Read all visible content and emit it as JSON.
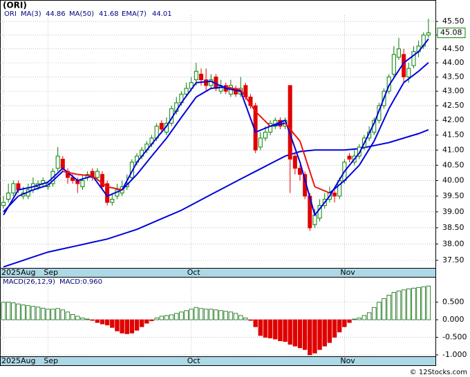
{
  "copyright": "© 12Stocks.com",
  "chart_data": [
    {
      "type": "candlestick",
      "title": "(ORI)",
      "symbol": "ORI",
      "candles": [
        [
          39.2,
          39.5,
          39.1,
          39.3
        ],
        [
          39.4,
          39.9,
          39.3,
          39.6
        ],
        [
          39.6,
          40.0,
          39.5,
          39.9
        ],
        [
          39.9,
          40.0,
          39.6,
          39.7
        ],
        [
          39.5,
          39.8,
          39.4,
          39.6
        ],
        [
          39.5,
          39.9,
          39.4,
          39.7
        ],
        [
          39.7,
          40.1,
          39.6,
          39.9
        ],
        [
          39.8,
          40.0,
          39.7,
          39.9
        ],
        [
          39.9,
          40.1,
          39.8,
          40.0
        ],
        [
          39.8,
          40.0,
          39.7,
          39.9
        ],
        [
          39.9,
          40.4,
          39.8,
          40.3
        ],
        [
          40.4,
          41.1,
          40.3,
          40.8
        ],
        [
          40.7,
          40.8,
          40.3,
          40.4
        ],
        [
          40.3,
          40.4,
          39.9,
          40.1
        ],
        [
          40.1,
          40.2,
          39.9,
          40.0
        ],
        [
          40.0,
          40.1,
          39.6,
          39.9
        ],
        [
          39.8,
          40.2,
          39.7,
          40.0
        ],
        [
          40.1,
          40.3,
          40.0,
          40.2
        ],
        [
          40.3,
          40.4,
          40.0,
          40.1
        ],
        [
          40.1,
          40.4,
          40.0,
          40.3
        ],
        [
          40.2,
          40.3,
          39.7,
          39.8
        ],
        [
          39.9,
          40.0,
          39.2,
          39.3
        ],
        [
          39.3,
          39.6,
          39.2,
          39.4
        ],
        [
          39.5,
          39.9,
          39.4,
          39.7
        ],
        [
          39.6,
          40.0,
          39.5,
          39.8
        ],
        [
          39.8,
          40.2,
          39.7,
          39.9
        ],
        [
          40.1,
          40.7,
          40.0,
          40.6
        ],
        [
          40.6,
          40.9,
          40.5,
          40.8
        ],
        [
          40.8,
          41.1,
          40.7,
          41.0
        ],
        [
          41.0,
          41.3,
          40.9,
          41.2
        ],
        [
          41.2,
          41.5,
          41.1,
          41.4
        ],
        [
          41.4,
          41.9,
          41.3,
          41.8
        ],
        [
          41.9,
          42.0,
          41.6,
          41.7
        ],
        [
          41.6,
          42.1,
          41.5,
          41.9
        ],
        [
          41.9,
          42.5,
          41.8,
          42.4
        ],
        [
          42.3,
          42.8,
          42.2,
          42.6
        ],
        [
          42.6,
          43.0,
          42.5,
          42.9
        ],
        [
          42.9,
          43.3,
          42.8,
          43.1
        ],
        [
          43.1,
          43.5,
          43.0,
          43.3
        ],
        [
          43.4,
          44.0,
          43.2,
          43.7
        ],
        [
          43.6,
          43.8,
          43.2,
          43.4
        ],
        [
          43.4,
          43.8,
          43.0,
          43.2
        ],
        [
          43.2,
          43.6,
          43.1,
          43.4
        ],
        [
          43.5,
          43.6,
          43.0,
          43.1
        ],
        [
          43.0,
          43.4,
          42.9,
          43.2
        ],
        [
          43.2,
          43.3,
          42.9,
          43.0
        ],
        [
          42.9,
          43.4,
          42.8,
          43.2
        ],
        [
          43.1,
          43.2,
          42.8,
          42.9
        ],
        [
          42.9,
          43.5,
          42.8,
          43.1
        ],
        [
          43.2,
          43.3,
          42.7,
          42.8
        ],
        [
          42.8,
          42.9,
          42.4,
          42.5
        ],
        [
          42.5,
          42.6,
          40.9,
          41.0
        ],
        [
          41.1,
          41.6,
          41.0,
          41.4
        ],
        [
          41.4,
          41.8,
          41.3,
          41.6
        ],
        [
          41.6,
          42.0,
          41.5,
          41.9
        ],
        [
          41.8,
          42.1,
          41.7,
          42.0
        ],
        [
          42.0,
          42.1,
          41.7,
          41.8
        ],
        [
          41.8,
          42.1,
          41.7,
          42.0
        ],
        [
          43.2,
          43.2,
          39.6,
          40.7
        ],
        [
          40.8,
          40.9,
          40.2,
          40.4
        ],
        [
          40.4,
          40.5,
          40.0,
          40.2
        ],
        [
          40.2,
          40.3,
          39.4,
          39.5
        ],
        [
          39.5,
          39.6,
          38.4,
          38.5
        ],
        [
          38.6,
          39.1,
          38.5,
          38.9
        ],
        [
          38.8,
          39.4,
          38.7,
          39.2
        ],
        [
          39.2,
          39.6,
          39.1,
          39.4
        ],
        [
          39.4,
          39.8,
          39.3,
          39.6
        ],
        [
          39.6,
          39.7,
          39.3,
          39.5
        ],
        [
          39.5,
          40.1,
          39.4,
          40.0
        ],
        [
          40.0,
          40.7,
          39.9,
          40.6
        ],
        [
          40.8,
          40.9,
          40.6,
          40.7
        ],
        [
          40.6,
          41.0,
          40.5,
          40.8
        ],
        [
          40.8,
          41.2,
          40.7,
          41.1
        ],
        [
          41.1,
          41.5,
          41.0,
          41.4
        ],
        [
          41.4,
          41.8,
          41.3,
          41.6
        ],
        [
          41.6,
          42.1,
          41.5,
          42.0
        ],
        [
          42.0,
          42.6,
          41.9,
          42.5
        ],
        [
          42.5,
          43.1,
          42.4,
          43.0
        ],
        [
          43.0,
          43.6,
          42.9,
          43.5
        ],
        [
          43.6,
          44.6,
          43.5,
          44.3
        ],
        [
          44.2,
          44.9,
          44.1,
          44.5
        ],
        [
          44.3,
          44.5,
          43.3,
          43.5
        ],
        [
          43.5,
          44.0,
          43.3,
          43.8
        ],
        [
          43.9,
          44.6,
          43.8,
          44.4
        ],
        [
          44.4,
          44.8,
          44.2,
          44.6
        ],
        [
          44.6,
          45.1,
          44.5,
          45.0
        ],
        [
          45.0,
          45.6,
          44.9,
          45.08
        ]
      ],
      "x": [
        0,
        3,
        6,
        9,
        12,
        15,
        18,
        21,
        24,
        27,
        30,
        33,
        36,
        39,
        42,
        45,
        48,
        51,
        54,
        57,
        60,
        63,
        66,
        69,
        72,
        75,
        78,
        81,
        84,
        86
      ],
      "series": [
        {
          "name": "MA(3)",
          "color": "#0000dd",
          "last": 44.86,
          "values": [
            38.9,
            39.7,
            39.8,
            39.95,
            40.4,
            40.0,
            40.15,
            39.5,
            39.7,
            40.6,
            41.2,
            41.8,
            42.6,
            43.3,
            43.35,
            43.1,
            43.0,
            41.6,
            41.8,
            42.0,
            40.6,
            38.9,
            39.5,
            40.3,
            40.9,
            41.9,
            43.2,
            44.0,
            44.4,
            44.86
          ]
        },
        {
          "name": "MA(50)",
          "color": "#0000dd",
          "last": 41.68,
          "values": [
            37.3,
            37.45,
            37.6,
            37.75,
            37.85,
            37.95,
            38.05,
            38.15,
            38.3,
            38.45,
            38.65,
            38.85,
            39.05,
            39.3,
            39.55,
            39.8,
            40.05,
            40.3,
            40.55,
            40.8,
            40.95,
            41.0,
            41.0,
            41.0,
            41.05,
            41.15,
            41.25,
            41.4,
            41.55,
            41.68
          ]
        },
        {
          "name": "EMA(7)",
          "color": "#0000dd",
          "down_color": "#ee1111",
          "last": 44.01,
          "values": [
            39.0,
            39.5,
            39.7,
            39.85,
            40.3,
            40.2,
            40.15,
            39.8,
            39.7,
            40.2,
            40.8,
            41.4,
            42.1,
            42.8,
            43.1,
            43.15,
            43.05,
            42.3,
            41.8,
            41.9,
            41.3,
            39.8,
            39.6,
            40.0,
            40.5,
            41.3,
            42.4,
            43.3,
            43.7,
            44.01
          ]
        }
      ],
      "last_price": 45.08,
      "log_scale": true,
      "grid": true,
      "ylim": [
        37.27,
        45.73
      ],
      "yticks": [
        {
          "value": 45.5,
          "label": "45.50"
        },
        {
          "value": 45.0,
          "label": "45.00"
        },
        {
          "value": 44.5,
          "label": "44.50"
        },
        {
          "value": 44.0,
          "label": "44.00"
        },
        {
          "value": 43.5,
          "label": "43.50"
        },
        {
          "value": 43.0,
          "label": "43.00"
        },
        {
          "value": 42.5,
          "label": "42.50"
        },
        {
          "value": 42.0,
          "label": "42.00"
        },
        {
          "value": 41.5,
          "label": "41.50"
        },
        {
          "value": 41.0,
          "label": "41.00"
        },
        {
          "value": 40.5,
          "label": "40.50"
        },
        {
          "value": 40.0,
          "label": "40.00"
        },
        {
          "value": 39.5,
          "label": "39.50"
        },
        {
          "value": 39.0,
          "label": "39.00"
        },
        {
          "value": 38.5,
          "label": "38.50"
        },
        {
          "value": 38.0,
          "label": "38.00"
        },
        {
          "value": 37.5,
          "label": "37.50"
        }
      ],
      "xticks": [
        {
          "value": 0,
          "label": "2025Aug"
        },
        {
          "value": 9,
          "label": "Sep"
        },
        {
          "value": 38,
          "label": "Oct"
        },
        {
          "value": 69,
          "label": "Nov"
        }
      ],
      "up_color": "#008000",
      "down_color": "#e00000"
    },
    {
      "type": "bar",
      "name": "MACD(26,12,9)",
      "last": 0.96,
      "last_label": "MACD:0.960",
      "values": [
        0.5,
        0.5,
        0.48,
        0.45,
        0.42,
        0.4,
        0.38,
        0.36,
        0.33,
        0.3,
        0.3,
        0.32,
        0.28,
        0.22,
        0.15,
        0.1,
        0.05,
        0.02,
        -0.02,
        -0.08,
        -0.12,
        -0.15,
        -0.22,
        -0.32,
        -0.38,
        -0.4,
        -0.38,
        -0.3,
        -0.2,
        -0.1,
        -0.03,
        0.05,
        0.1,
        0.12,
        0.14,
        0.18,
        0.22,
        0.26,
        0.3,
        0.35,
        0.32,
        0.3,
        0.3,
        0.28,
        0.26,
        0.24,
        0.22,
        0.18,
        0.12,
        0.05,
        -0.02,
        -0.2,
        -0.45,
        -0.5,
        -0.52,
        -0.55,
        -0.6,
        -0.62,
        -0.7,
        -0.75,
        -0.8,
        -0.85,
        -1.0,
        -0.95,
        -0.85,
        -0.75,
        -0.65,
        -0.5,
        -0.35,
        -0.2,
        -0.08,
        0.02,
        0.05,
        0.12,
        0.2,
        0.35,
        0.5,
        0.6,
        0.7,
        0.78,
        0.82,
        0.85,
        0.88,
        0.9,
        0.92,
        0.94,
        0.96
      ],
      "ylim": [
        -1.04,
        1.2
      ],
      "yticks": [
        {
          "value": 0.5,
          "label": "0.500"
        },
        {
          "value": 0,
          "label": "0.000"
        },
        {
          "value": -0.5,
          "label": "-0.500"
        },
        {
          "value": -1.0,
          "label": "-1.000"
        }
      ],
      "xticks": [
        {
          "value": 0,
          "label": "2025Aug"
        },
        {
          "value": 9,
          "label": "Sep"
        },
        {
          "value": 38,
          "label": "Oct"
        },
        {
          "value": 69,
          "label": "Nov"
        }
      ],
      "up_color": "#006400",
      "down_color": "#e00000"
    }
  ]
}
